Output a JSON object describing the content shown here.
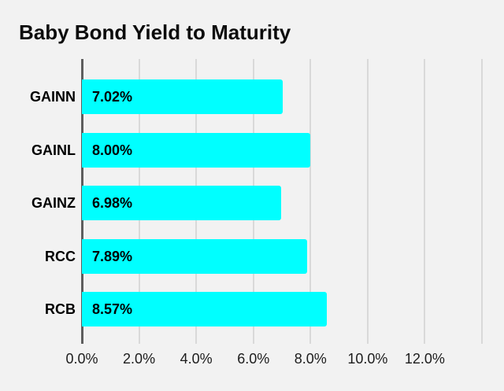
{
  "page": {
    "background_color": "#f2f2f2"
  },
  "chart_data": {
    "type": "bar",
    "orientation": "horizontal",
    "title": "Baby Bond Yield to Maturity",
    "categories": [
      "GAINN",
      "GAINL",
      "GAINZ",
      "RCC",
      "RCB"
    ],
    "values": [
      7.02,
      8.0,
      6.98,
      7.89,
      8.57
    ],
    "value_labels": [
      "7.02%",
      "8.00%",
      "6.98%",
      "7.89%",
      "8.57%"
    ],
    "xlabel": "",
    "ylabel": "",
    "xlim": [
      0,
      14
    ],
    "x_tick_step": 2,
    "x_tick_labels": [
      "0.0%",
      "2.0%",
      "4.0%",
      "6.0%",
      "8.0%",
      "10.0%",
      "12.0%",
      ""
    ],
    "grid": true,
    "legend_position": "none",
    "bar_color": "#00ffff",
    "gridline_color": "#d9d9d9",
    "zero_line_color": "#5e5e5e",
    "title_color": "#0c0c0c",
    "category_label_color": "#000000",
    "value_label_color": "#000000",
    "tick_label_color": "#1c1c1c"
  }
}
